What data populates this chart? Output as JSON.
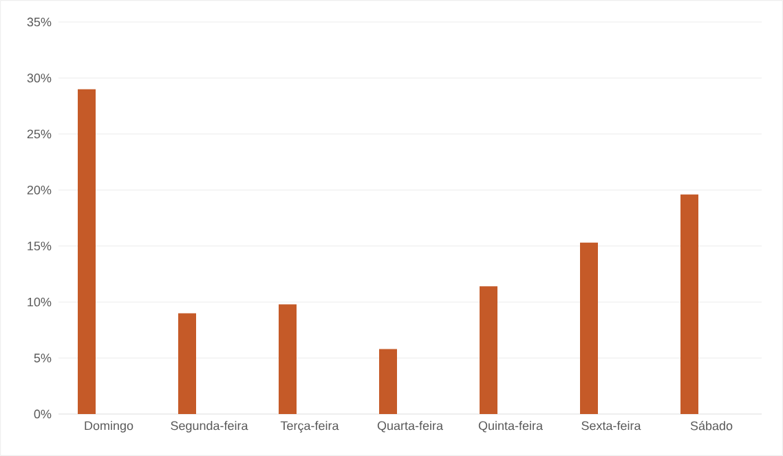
{
  "chart_data": {
    "type": "bar",
    "categories": [
      "Domingo",
      "Segunda-feira",
      "Terça-feira",
      "Quarta-feira",
      "Quinta-feira",
      "Sexta-feira",
      "Sábado"
    ],
    "values": [
      29,
      9,
      9.8,
      5.8,
      11.4,
      15.3,
      19.6
    ],
    "color": "#c55a28",
    "ylim": [
      0,
      35
    ],
    "yticks": [
      {
        "value": 0,
        "label": "0%"
      },
      {
        "value": 5,
        "label": "5%"
      },
      {
        "value": 10,
        "label": "10%"
      },
      {
        "value": 15,
        "label": "15%"
      },
      {
        "value": 20,
        "label": "20%"
      },
      {
        "value": 25,
        "label": "25%"
      },
      {
        "value": 30,
        "label": "30%"
      },
      {
        "value": 35,
        "label": "35%"
      }
    ],
    "grid": "y"
  }
}
